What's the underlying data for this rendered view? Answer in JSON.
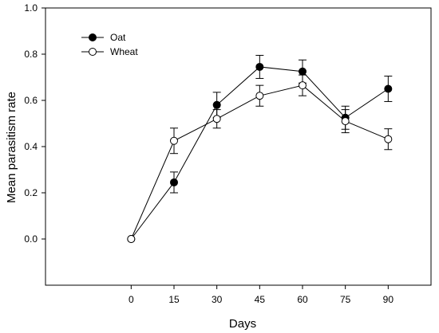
{
  "chart_data": {
    "type": "line",
    "title": "",
    "xlabel": "Days",
    "ylabel": "Mean parasitism rate",
    "x": [
      0,
      15,
      30,
      45,
      60,
      75,
      90
    ],
    "xlim": [
      -30,
      105
    ],
    "ylim": [
      -0.2,
      1.0
    ],
    "xticks": [
      "0",
      "15",
      "30",
      "45",
      "60",
      "75",
      "90"
    ],
    "yticks": [
      "0.0",
      "0.2",
      "0.4",
      "0.6",
      "0.8",
      "1.0"
    ],
    "grid": false,
    "legend_position": "top-left",
    "series": [
      {
        "name": "Oat",
        "marker": "filled-circle",
        "color": "#000000",
        "values": [
          0.0,
          0.245,
          0.58,
          0.745,
          0.725,
          0.525,
          0.65
        ],
        "errors": [
          0.0,
          0.045,
          0.055,
          0.05,
          0.05,
          0.05,
          0.055
        ]
      },
      {
        "name": "Wheat",
        "marker": "open-circle",
        "color": "#000000",
        "values": [
          0.0,
          0.425,
          0.52,
          0.62,
          0.665,
          0.51,
          0.432
        ],
        "errors": [
          0.0,
          0.055,
          0.04,
          0.045,
          0.045,
          0.05,
          0.045
        ]
      }
    ]
  }
}
